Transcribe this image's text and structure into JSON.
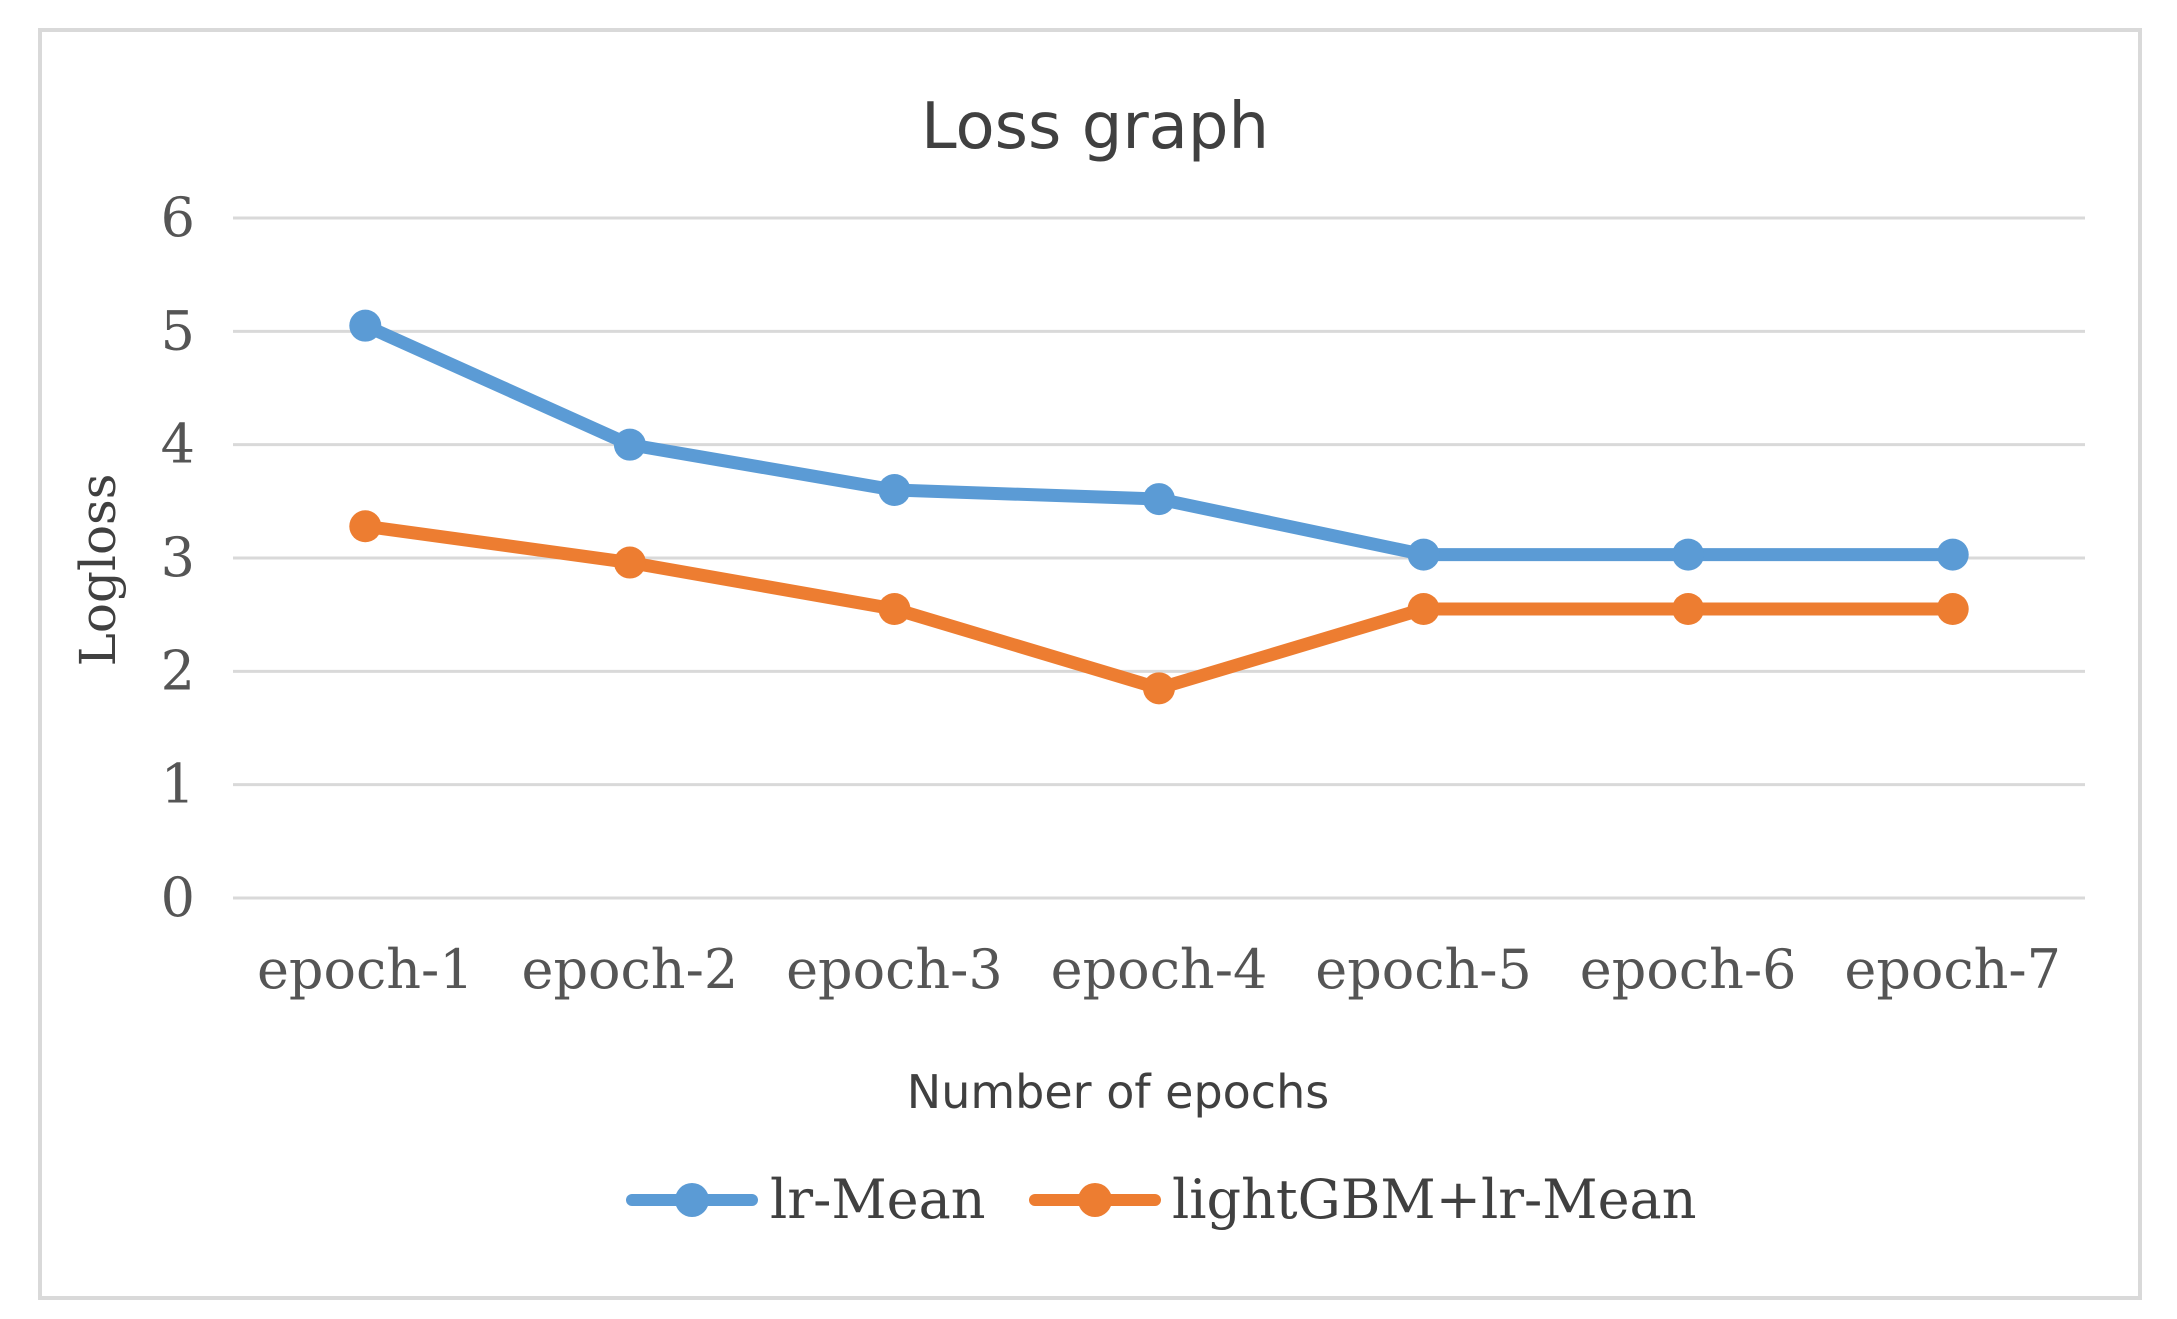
{
  "chart_data": {
    "type": "line",
    "title": "Loss graph",
    "xlabel": "Number of epochs",
    "ylabel": "Logloss",
    "categories": [
      "epoch-1",
      "epoch-2",
      "epoch-3",
      "epoch-4",
      "epoch-5",
      "epoch-6",
      "epoch-7"
    ],
    "ylim": [
      0,
      6
    ],
    "yticks": [
      0,
      1,
      2,
      3,
      4,
      5,
      6
    ],
    "grid": true,
    "legend_position": "bottom",
    "series": [
      {
        "name": "lr-Mean",
        "color": "#5B9BD5",
        "values": [
          5.05,
          4.0,
          3.6,
          3.52,
          3.03,
          3.03,
          3.03
        ]
      },
      {
        "name": "lightGBM+lr-Mean",
        "color": "#ED7D31",
        "values": [
          3.28,
          2.96,
          2.55,
          1.85,
          2.55,
          2.55,
          2.55
        ]
      }
    ]
  },
  "colors": {
    "grid": "#D9D9D9",
    "frame": "#D9D9D9"
  }
}
